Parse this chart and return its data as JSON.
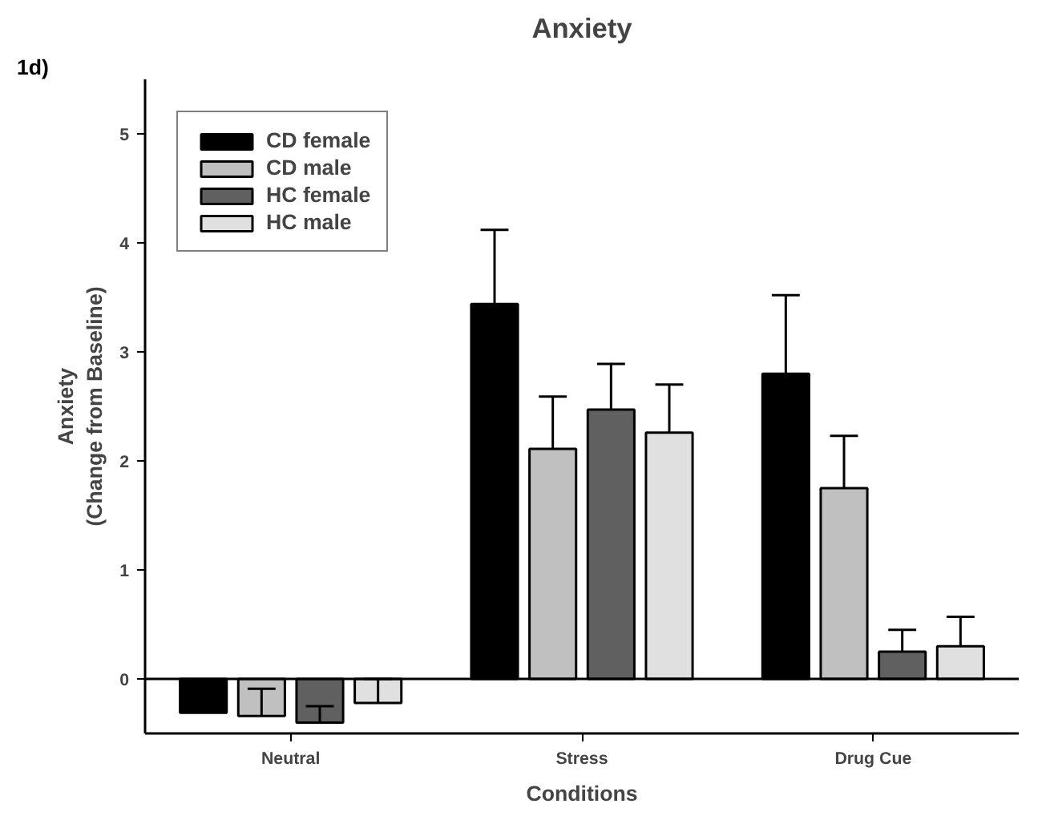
{
  "chart_data": {
    "type": "bar",
    "title": "Anxiety",
    "annotations": [
      "1d)"
    ],
    "xlabel": "Conditions",
    "ylabel": "Anxiety\n(Change from Baseline)",
    "categories": [
      "Neutral",
      "Stress",
      "Drug Cue"
    ],
    "series": [
      {
        "name": "CD female",
        "color": "#000000",
        "values": [
          -0.31,
          3.44,
          2.8
        ],
        "errors": [
          null,
          [
            3.44,
            4.12
          ],
          [
            2.8,
            3.52
          ]
        ]
      },
      {
        "name": "CD male",
        "color": "#c0c0c0",
        "values": [
          -0.34,
          2.11,
          1.75
        ],
        "errors": [
          [
            -0.34,
            -0.09
          ],
          [
            2.11,
            2.59
          ],
          [
            1.75,
            2.23
          ]
        ]
      },
      {
        "name": "HC female",
        "color": "#606060",
        "values": [
          -0.4,
          2.47,
          0.25
        ],
        "errors": [
          [
            -0.4,
            -0.25
          ],
          [
            2.47,
            2.89
          ],
          [
            0.25,
            0.45
          ]
        ]
      },
      {
        "name": "HC male",
        "color": "#e0e0e0",
        "values": [
          -0.22,
          2.26,
          0.3
        ],
        "errors": [
          [
            -0.22,
            0.0
          ],
          [
            2.26,
            2.7
          ],
          [
            0.3,
            0.57
          ]
        ]
      }
    ],
    "ylim": [
      -0.5,
      5.5
    ],
    "yticks": [
      0,
      1,
      2,
      3,
      4,
      5
    ],
    "ref_lines": [
      {
        "axis": "y",
        "value": 0,
        "label": null,
        "color": "#000000"
      }
    ],
    "legend": "top left",
    "grid": false
  }
}
